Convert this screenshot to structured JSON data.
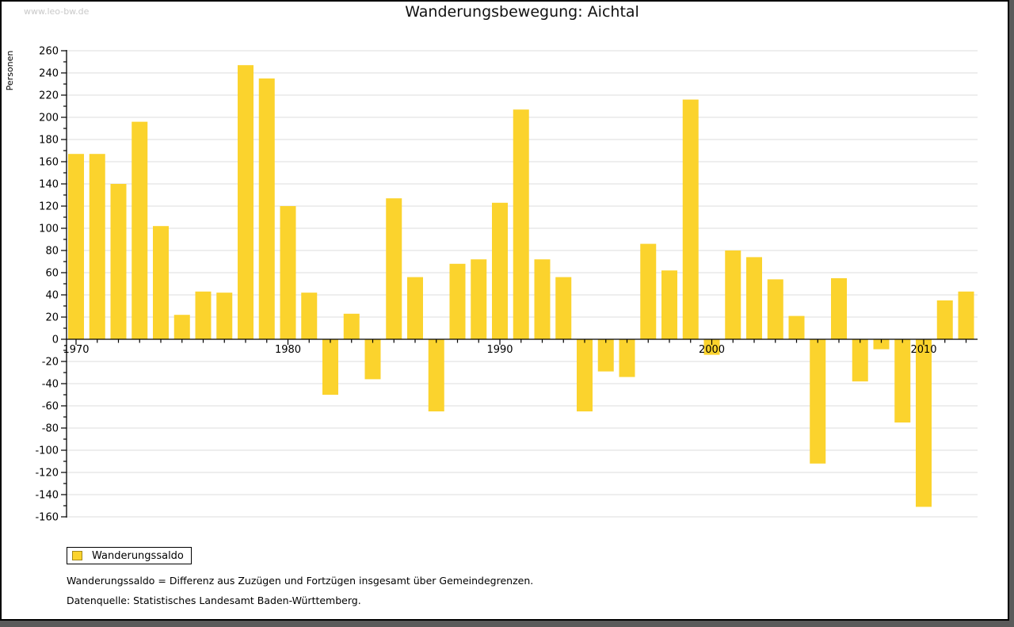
{
  "watermark": "www.leo-bw.de",
  "title": "Wanderungsbewegung: Aichtal",
  "chart_data": {
    "type": "bar",
    "title": "Wanderungsbewegung: Aichtal",
    "xlabel": "",
    "ylabel": "Personen",
    "ylim": [
      -160,
      260
    ],
    "ytick_step": 20,
    "y_minor_step": 10,
    "grid": true,
    "grid_color": "#dcdcdc",
    "axis_color": "#000000",
    "x_decade_labels": [
      "1970",
      "1980",
      "1990",
      "2000",
      "2010"
    ],
    "legend_position": "bottom-left",
    "series": [
      {
        "name": "Wanderungssaldo",
        "color": "#fbd32d",
        "x": [
          1970,
          1971,
          1972,
          1973,
          1974,
          1975,
          1976,
          1977,
          1978,
          1979,
          1980,
          1981,
          1982,
          1983,
          1984,
          1985,
          1986,
          1987,
          1988,
          1989,
          1990,
          1991,
          1992,
          1993,
          1994,
          1995,
          1996,
          1997,
          1998,
          1999,
          2000,
          2001,
          2002,
          2003,
          2004,
          2005,
          2006,
          2007,
          2008,
          2009,
          2010,
          2011,
          2012
        ],
        "values": [
          167,
          167,
          140,
          196,
          102,
          22,
          43,
          42,
          247,
          235,
          120,
          42,
          -50,
          23,
          -36,
          127,
          56,
          -65,
          68,
          72,
          123,
          207,
          72,
          56,
          -65,
          -29,
          -34,
          86,
          62,
          216,
          -14,
          80,
          74,
          54,
          21,
          -112,
          55,
          -38,
          -9,
          -75,
          -151,
          35,
          43
        ]
      }
    ]
  },
  "legend": {
    "label": "Wanderungssaldo",
    "swatch_color": "#fbd32d",
    "swatch_border": "#a4891b"
  },
  "footnotes": [
    "Wanderungssaldo = Differenz aus Zuzügen und Fortzügen insgesamt über Gemeindegrenzen.",
    "Datenquelle: Statistisches Landesamt Baden-Württemberg."
  ]
}
